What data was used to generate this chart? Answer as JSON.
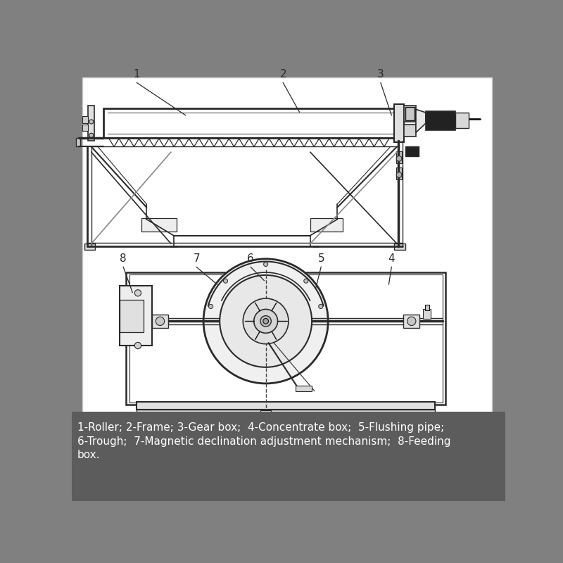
{
  "bg_color": "#808080",
  "white_panel_color": "#ffffff",
  "line_color": "#2a2a2a",
  "dark_line": "#111111",
  "caption_bg": "#5c5c5c",
  "caption_text_color": "#ffffff",
  "caption_line1": "1-Roller; 2-Frame; 3-Gear box;  4-Concentrate box;  5-Flushing pipe;",
  "caption_line2": "6-Trough;  7-Magnetic declination adjustment mechanism;  8-Feeding",
  "caption_line3": "box.",
  "caption_fontsize": 11.0,
  "label_fontsize": 11
}
